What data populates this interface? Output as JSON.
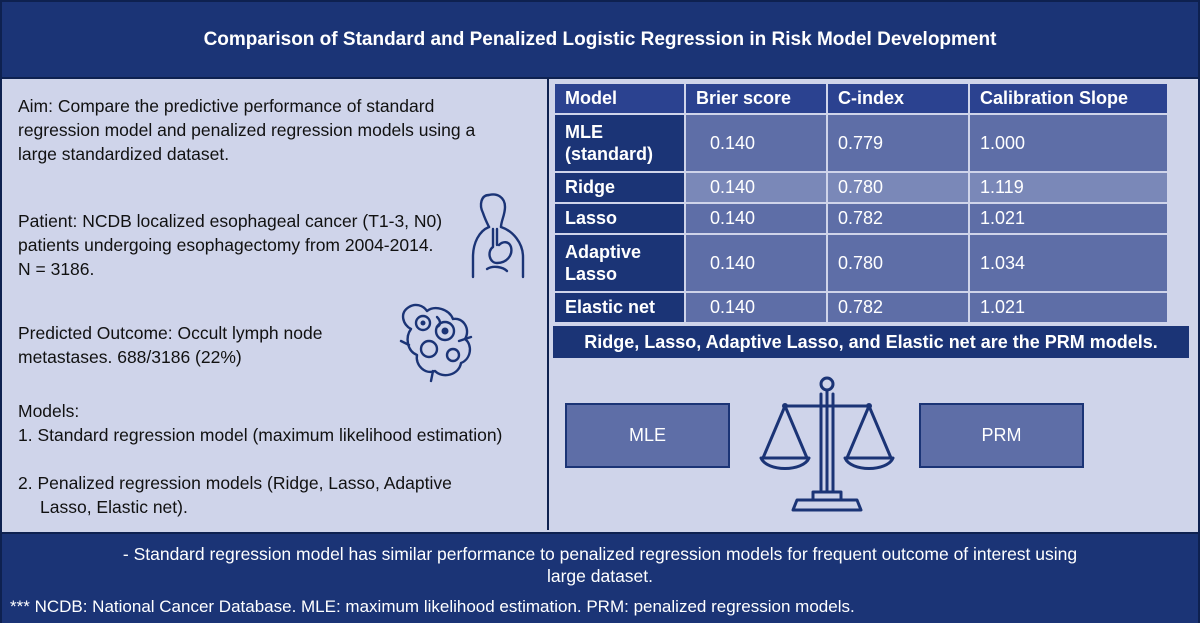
{
  "title": "Comparison of Standard and Penalized Logistic Regression in Risk Model Development",
  "aim": "Aim: Compare the predictive performance of standard regression model and penalized regression models using a large standardized dataset.",
  "patient": "Patient: NCDB localized esophageal cancer (T1-3, N0) patients undergoing esophagectomy from 2004-2014. N = 3186.",
  "outcome": "Predicted Outcome: Occult lymph node metastases. 688/3186 (22%)",
  "models": {
    "heading": "Models:",
    "item1": "1. Standard regression model (maximum likelihood estimation)",
    "item2": "2. Penalized regression models (Ridge, Lasso, Adaptive Lasso, Elastic net)."
  },
  "table": {
    "headers": [
      "Model",
      "Brier score",
      "C-index",
      "Calibration Slope"
    ],
    "rows": [
      {
        "model": "MLE (standard)",
        "brier": "0.140",
        "cindex": "0.779",
        "slope": "1.000"
      },
      {
        "model": "Ridge",
        "brier": "0.140",
        "cindex": "0.780",
        "slope": "1.119"
      },
      {
        "model": "Lasso",
        "brier": "0.140",
        "cindex": "0.782",
        "slope": "1.021"
      },
      {
        "model": "Adaptive Lasso",
        "brier": "0.140",
        "cindex": "0.780",
        "slope": "1.034"
      },
      {
        "model": "Elastic net",
        "brier": "0.140",
        "cindex": "0.782",
        "slope": "1.021"
      }
    ],
    "note": "Ridge, Lasso, Adaptive Lasso, and Elastic net are the PRM models."
  },
  "balance": {
    "left": "MLE",
    "right": "PRM"
  },
  "conclusion": "- Standard regression model has similar performance to penalized regression models for frequent outcome of interest using large dataset.",
  "abbreviations": "*** NCDB: National Cancer Database. MLE: maximum likelihood estimation. PRM: penalized regression models.",
  "colors": {
    "navy": "#1b3476",
    "header_cell": "#2b4290",
    "value_cell": "#5e6ea7",
    "background": "#cfd4ea"
  },
  "icons": [
    "esophagus-icon",
    "lymph-node-icon",
    "balance-scale-icon"
  ]
}
